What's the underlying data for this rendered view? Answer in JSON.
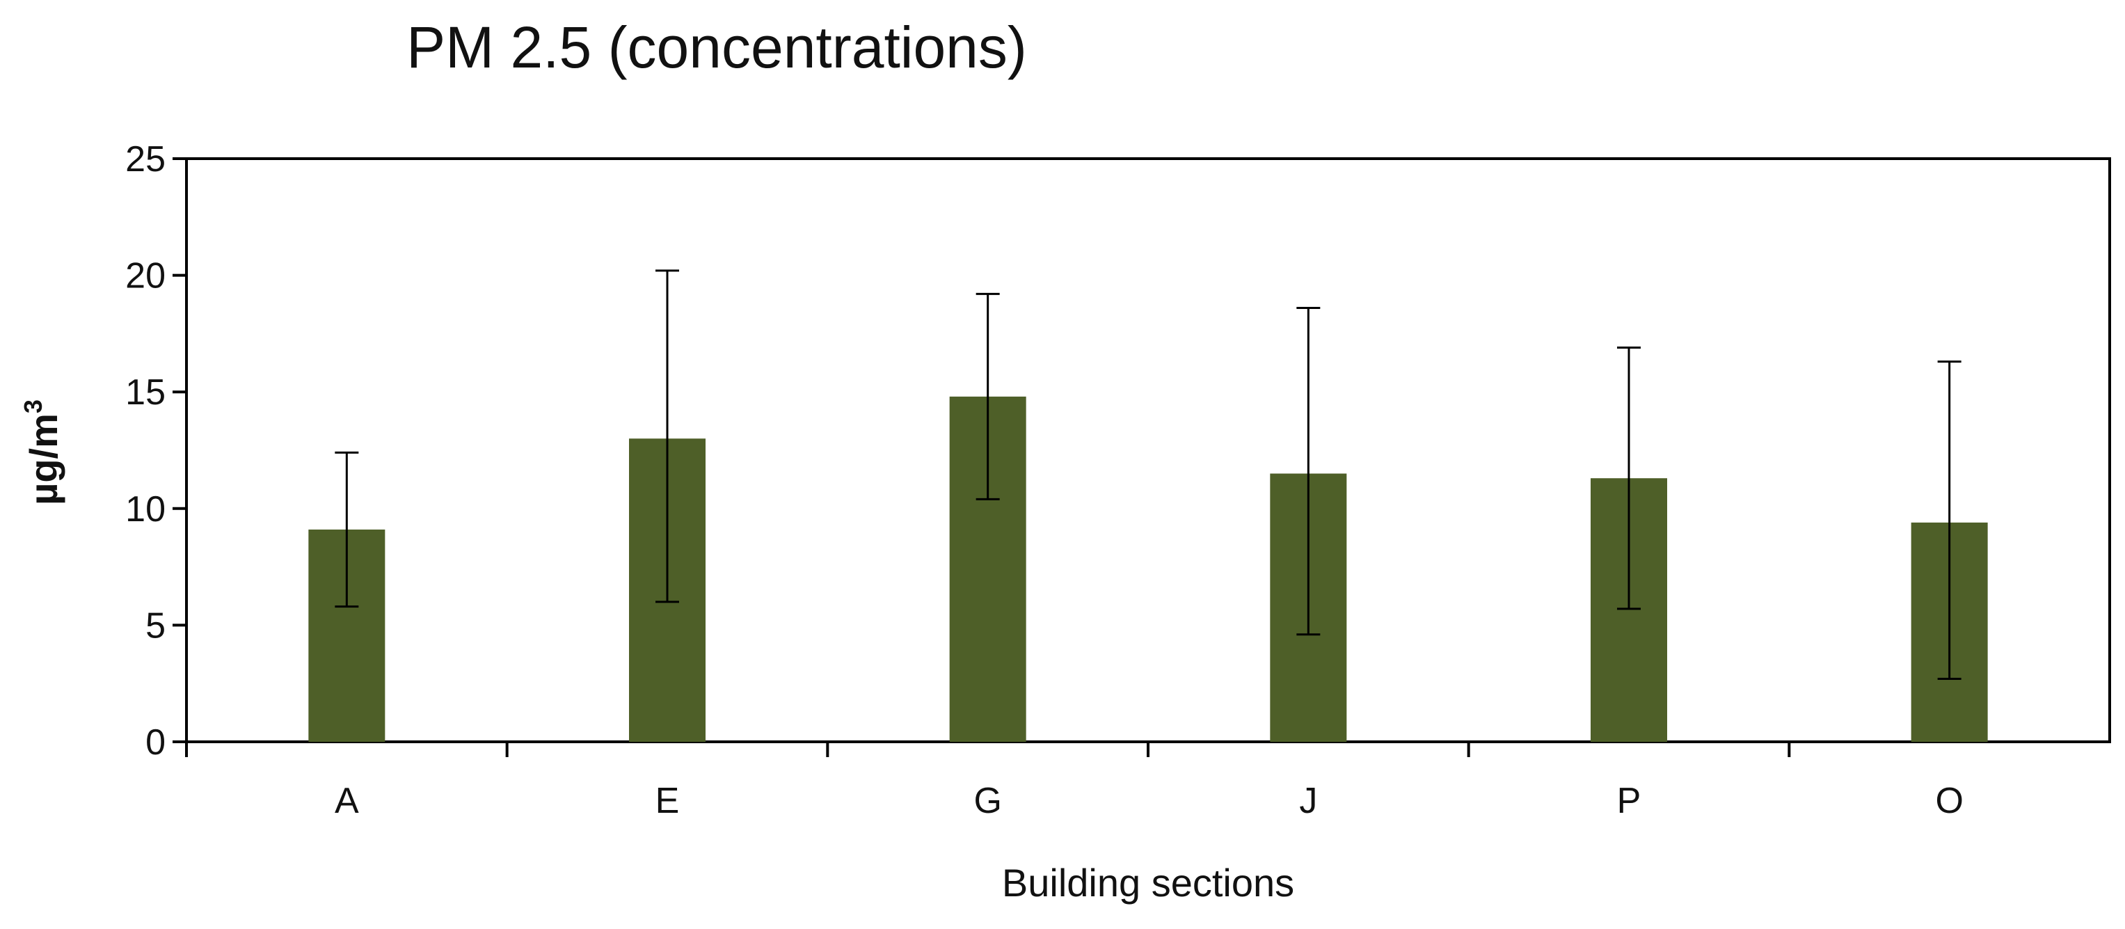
{
  "chart_data": {
    "type": "bar",
    "title": "PM 2.5 (concentrations)",
    "xlabel": "Building sections",
    "ylabel": "µg/m",
    "ylabel_superscript": "3",
    "categories": [
      "A",
      "E",
      "G",
      "J",
      "P",
      "O"
    ],
    "series": [
      {
        "values": [
          9.1,
          13.0,
          14.8,
          11.5,
          11.3,
          9.4
        ],
        "error_low": [
          5.8,
          6.0,
          10.4,
          4.6,
          5.7,
          2.7
        ],
        "error_high": [
          12.4,
          20.2,
          19.2,
          18.6,
          16.9,
          16.3
        ]
      }
    ],
    "ylim": [
      0,
      25
    ],
    "yticks": [
      0,
      5,
      10,
      15,
      20,
      25
    ],
    "grid": false,
    "legend": "none",
    "colors": {
      "bar": "#4e5f28",
      "axis": "#000000",
      "error_bar": "#000000"
    }
  }
}
